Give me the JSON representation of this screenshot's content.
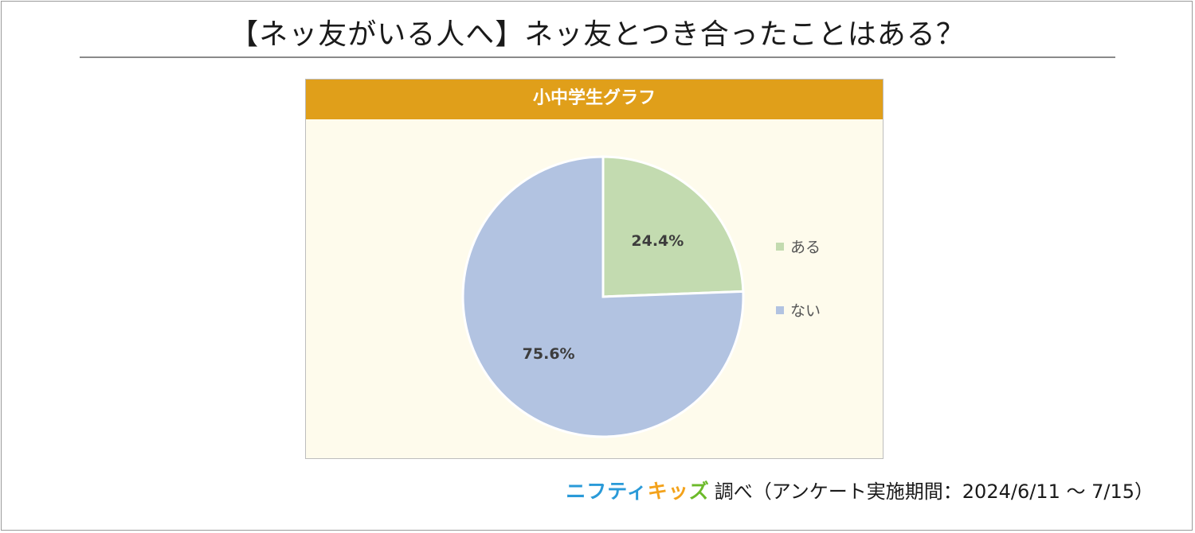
{
  "title": "【ネッ友がいる人へ】ネッ友とつき合ったことはある？",
  "footer": {
    "brand_part1": "ニフティ",
    "brand_part2": "キッ",
    "brand_part3": "ズ",
    "survey": "調べ（アンケート実施期間：2024/6/11 ～ 7/15）"
  },
  "chart_data": {
    "type": "pie",
    "title": "小中学生グラフ",
    "slices": [
      {
        "label": "ある",
        "value": 24.4,
        "value_label": "24.4%",
        "color": "#c3dbb0"
      },
      {
        "label": "ない",
        "value": 75.6,
        "value_label": "75.6%",
        "color": "#b2c3e1"
      }
    ],
    "start_angle": "12 o'clock",
    "direction": "clockwise",
    "legend_position": "right"
  }
}
